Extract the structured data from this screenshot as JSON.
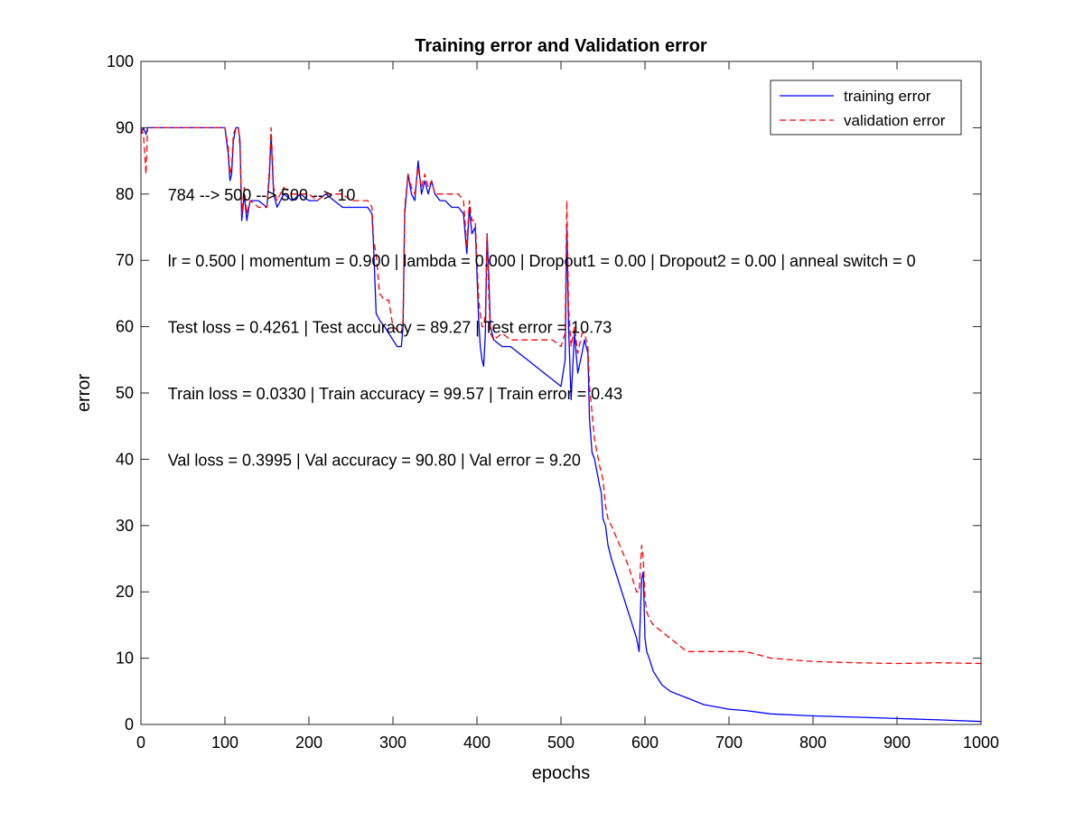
{
  "chart_data": {
    "type": "line",
    "title": "Training error and Validation error",
    "xlabel": "epochs",
    "ylabel": "error",
    "xlim": [
      0,
      1000
    ],
    "ylim": [
      0,
      100
    ],
    "xticks": [
      0,
      100,
      200,
      300,
      400,
      500,
      600,
      700,
      800,
      900,
      1000
    ],
    "yticks": [
      0,
      10,
      20,
      30,
      40,
      50,
      60,
      70,
      80,
      90,
      100
    ],
    "grid": false,
    "legend_position": "top-right",
    "annotations": [
      {
        "text": "784 --> 500 --> 500 --> 10",
        "x": 32,
        "y": 80
      },
      {
        "text": "lr = 0.500 | momentum = 0.900 | lambda = 0.000 | Dropout1 = 0.00 | Dropout2 = 0.00 | anneal switch = 0",
        "x": 32,
        "y": 70
      },
      {
        "text": "Test loss = 0.4261 | Test accuracy = 89.27 | Test error = 10.73",
        "x": 32,
        "y": 60
      },
      {
        "text": "Train loss = 0.0330 | Train accuracy = 99.57 | Train error = 0.43",
        "x": 32,
        "y": 50
      },
      {
        "text": "Val loss = 0.3995 | Val accuracy = 90.80 | Val error = 9.20",
        "x": 32,
        "y": 40
      }
    ],
    "series": [
      {
        "name": "training error",
        "color": "#0000ff",
        "style": "solid",
        "points": [
          [
            0,
            89
          ],
          [
            3,
            90
          ],
          [
            6,
            89
          ],
          [
            8,
            90
          ],
          [
            100,
            90
          ],
          [
            104,
            86
          ],
          [
            106,
            82
          ],
          [
            108,
            83
          ],
          [
            110,
            88
          ],
          [
            113,
            90
          ],
          [
            116,
            90
          ],
          [
            118,
            88
          ],
          [
            120,
            76
          ],
          [
            123,
            80
          ],
          [
            126,
            76
          ],
          [
            130,
            79
          ],
          [
            140,
            79
          ],
          [
            150,
            78
          ],
          [
            153,
            83
          ],
          [
            155,
            89
          ],
          [
            158,
            80
          ],
          [
            162,
            78
          ],
          [
            170,
            80
          ],
          [
            180,
            79
          ],
          [
            190,
            80
          ],
          [
            200,
            79
          ],
          [
            210,
            79
          ],
          [
            220,
            80
          ],
          [
            230,
            79
          ],
          [
            240,
            78
          ],
          [
            250,
            78
          ],
          [
            260,
            78
          ],
          [
            270,
            78
          ],
          [
            275,
            77
          ],
          [
            277,
            72
          ],
          [
            280,
            62
          ],
          [
            284,
            61
          ],
          [
            290,
            60
          ],
          [
            300,
            58
          ],
          [
            305,
            57
          ],
          [
            310,
            57
          ],
          [
            312,
            60
          ],
          [
            314,
            77
          ],
          [
            318,
            83
          ],
          [
            322,
            80
          ],
          [
            326,
            79
          ],
          [
            330,
            85
          ],
          [
            334,
            80
          ],
          [
            338,
            82
          ],
          [
            342,
            80
          ],
          [
            346,
            82
          ],
          [
            350,
            80
          ],
          [
            356,
            79
          ],
          [
            362,
            79
          ],
          [
            370,
            78
          ],
          [
            378,
            78
          ],
          [
            384,
            77
          ],
          [
            388,
            71
          ],
          [
            391,
            78
          ],
          [
            394,
            74
          ],
          [
            398,
            75
          ],
          [
            402,
            61
          ],
          [
            404,
            57
          ],
          [
            406,
            55
          ],
          [
            408,
            54
          ],
          [
            410,
            59
          ],
          [
            412,
            74
          ],
          [
            414,
            68
          ],
          [
            416,
            60
          ],
          [
            420,
            58
          ],
          [
            430,
            57
          ],
          [
            440,
            57
          ],
          [
            450,
            56
          ],
          [
            460,
            55
          ],
          [
            470,
            54
          ],
          [
            480,
            53
          ],
          [
            490,
            52
          ],
          [
            500,
            51
          ],
          [
            505,
            55
          ],
          [
            507,
            75
          ],
          [
            509,
            60
          ],
          [
            512,
            49
          ],
          [
            516,
            59
          ],
          [
            520,
            53
          ],
          [
            525,
            56
          ],
          [
            528,
            58
          ],
          [
            532,
            56
          ],
          [
            534,
            46
          ],
          [
            537,
            41
          ],
          [
            540,
            40
          ],
          [
            543,
            38
          ],
          [
            546,
            36
          ],
          [
            548,
            35
          ],
          [
            550,
            31
          ],
          [
            553,
            30
          ],
          [
            556,
            27
          ],
          [
            560,
            25
          ],
          [
            570,
            21
          ],
          [
            580,
            17
          ],
          [
            590,
            13
          ],
          [
            593,
            11
          ],
          [
            596,
            22
          ],
          [
            598,
            23
          ],
          [
            600,
            13
          ],
          [
            602,
            11
          ],
          [
            605,
            10
          ],
          [
            610,
            8
          ],
          [
            620,
            6
          ],
          [
            630,
            5
          ],
          [
            650,
            4
          ],
          [
            670,
            3
          ],
          [
            700,
            2.3
          ],
          [
            720,
            2.1
          ],
          [
            750,
            1.6
          ],
          [
            800,
            1.3
          ],
          [
            850,
            1.1
          ],
          [
            900,
            0.9
          ],
          [
            950,
            0.7
          ],
          [
            1000,
            0.45
          ]
        ]
      },
      {
        "name": "validation error",
        "color": "#ff0000",
        "style": "dashed",
        "points": [
          [
            0,
            90
          ],
          [
            3,
            89
          ],
          [
            6,
            83
          ],
          [
            8,
            90
          ],
          [
            100,
            90
          ],
          [
            104,
            87
          ],
          [
            106,
            83
          ],
          [
            108,
            84
          ],
          [
            110,
            89
          ],
          [
            113,
            90
          ],
          [
            116,
            90
          ],
          [
            118,
            87
          ],
          [
            120,
            77
          ],
          [
            123,
            81
          ],
          [
            126,
            77
          ],
          [
            130,
            79
          ],
          [
            140,
            78
          ],
          [
            150,
            78
          ],
          [
            153,
            84
          ],
          [
            155,
            90
          ],
          [
            158,
            81
          ],
          [
            162,
            79
          ],
          [
            170,
            81
          ],
          [
            180,
            80
          ],
          [
            190,
            80
          ],
          [
            200,
            80
          ],
          [
            210,
            79
          ],
          [
            220,
            80
          ],
          [
            230,
            80
          ],
          [
            240,
            80
          ],
          [
            250,
            79
          ],
          [
            260,
            79
          ],
          [
            270,
            79
          ],
          [
            275,
            78
          ],
          [
            277,
            73
          ],
          [
            280,
            71
          ],
          [
            284,
            65
          ],
          [
            290,
            64
          ],
          [
            295,
            64
          ],
          [
            300,
            60
          ],
          [
            310,
            59
          ],
          [
            312,
            61
          ],
          [
            314,
            78
          ],
          [
            318,
            83
          ],
          [
            322,
            81
          ],
          [
            326,
            80
          ],
          [
            330,
            84
          ],
          [
            334,
            81
          ],
          [
            338,
            83
          ],
          [
            342,
            81
          ],
          [
            346,
            82
          ],
          [
            350,
            80
          ],
          [
            356,
            80
          ],
          [
            362,
            80
          ],
          [
            370,
            80
          ],
          [
            378,
            80
          ],
          [
            384,
            79
          ],
          [
            388,
            72
          ],
          [
            391,
            79
          ],
          [
            394,
            76
          ],
          [
            398,
            76
          ],
          [
            402,
            64
          ],
          [
            404,
            62
          ],
          [
            406,
            60
          ],
          [
            408,
            60
          ],
          [
            410,
            62
          ],
          [
            412,
            74
          ],
          [
            414,
            65
          ],
          [
            416,
            59
          ],
          [
            420,
            58
          ],
          [
            430,
            59
          ],
          [
            440,
            58
          ],
          [
            450,
            58
          ],
          [
            460,
            58
          ],
          [
            470,
            58
          ],
          [
            480,
            58
          ],
          [
            490,
            58
          ],
          [
            500,
            57
          ],
          [
            505,
            59
          ],
          [
            507,
            79
          ],
          [
            509,
            63
          ],
          [
            512,
            57
          ],
          [
            516,
            60
          ],
          [
            520,
            56
          ],
          [
            525,
            59
          ],
          [
            528,
            59
          ],
          [
            532,
            57
          ],
          [
            534,
            51
          ],
          [
            537,
            47
          ],
          [
            540,
            43
          ],
          [
            543,
            41
          ],
          [
            546,
            39
          ],
          [
            548,
            38
          ],
          [
            550,
            37
          ],
          [
            553,
            33
          ],
          [
            556,
            31
          ],
          [
            560,
            30
          ],
          [
            570,
            27
          ],
          [
            580,
            24
          ],
          [
            590,
            20
          ],
          [
            593,
            20
          ],
          [
            596,
            27
          ],
          [
            598,
            25
          ],
          [
            600,
            19
          ],
          [
            602,
            17
          ],
          [
            605,
            16
          ],
          [
            610,
            15
          ],
          [
            620,
            14
          ],
          [
            630,
            13
          ],
          [
            650,
            11
          ],
          [
            670,
            11
          ],
          [
            700,
            11
          ],
          [
            720,
            11
          ],
          [
            750,
            10
          ],
          [
            800,
            9.5
          ],
          [
            850,
            9.3
          ],
          [
            900,
            9.2
          ],
          [
            950,
            9.3
          ],
          [
            1000,
            9.2
          ]
        ]
      }
    ]
  }
}
